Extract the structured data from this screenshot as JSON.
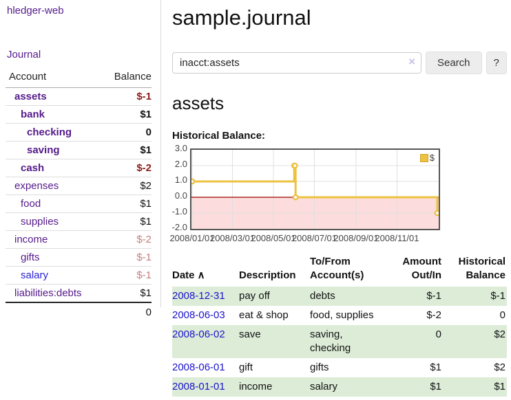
{
  "app": {
    "brand": "hledger-web",
    "nav_journal": "Journal"
  },
  "page": {
    "title": "sample.journal"
  },
  "search": {
    "value": "inacct:assets",
    "clear_icon": "×",
    "button_label": "Search",
    "help_label": "?"
  },
  "account_view": {
    "heading": "assets",
    "chart_label": "Historical Balance:"
  },
  "sidebar_accounts": {
    "header_account": "Account",
    "header_balance": "Balance",
    "rows": [
      {
        "name": "assets",
        "indent": 1,
        "bold": true,
        "balance": "$-1",
        "balance_style": "neg-strong"
      },
      {
        "name": "bank",
        "indent": 2,
        "bold": true,
        "balance": "$1",
        "balance_style": "normal"
      },
      {
        "name": "checking",
        "indent": 3,
        "bold": true,
        "balance": "0",
        "balance_style": "normal"
      },
      {
        "name": "saving",
        "indent": 3,
        "bold": true,
        "balance": "$1",
        "balance_style": "normal"
      },
      {
        "name": "cash",
        "indent": 2,
        "bold": true,
        "balance": "$-2",
        "balance_style": "neg-strong"
      },
      {
        "name": "expenses",
        "indent": 1,
        "bold": false,
        "balance": "$2",
        "balance_style": "normal"
      },
      {
        "name": "food",
        "indent": 2,
        "bold": false,
        "balance": "$1",
        "balance_style": "normal"
      },
      {
        "name": "supplies",
        "indent": 2,
        "bold": false,
        "balance": "$1",
        "balance_style": "normal"
      },
      {
        "name": "income",
        "indent": 1,
        "bold": false,
        "balance": "$-2",
        "balance_style": "neg-muted"
      },
      {
        "name": "gifts",
        "indent": 2,
        "bold": false,
        "balance": "$-1",
        "balance_style": "neg-muted"
      },
      {
        "name": "salary",
        "indent": 2,
        "bold": false,
        "balance": "$-1",
        "balance_style": "neg-muted",
        "link_blue": true
      },
      {
        "name": "liabilities:debts",
        "indent": 1,
        "bold": false,
        "balance": "$1",
        "balance_style": "normal"
      }
    ],
    "total": "0"
  },
  "chart_data": {
    "type": "line",
    "step": true,
    "title": "Historical Balance of assets",
    "legend": "$",
    "legend_position": "top-right",
    "grid": true,
    "ylim": [
      -2.0,
      3.0
    ],
    "yticks": [
      3.0,
      2.0,
      1.0,
      0.0,
      -1.0,
      -2.0
    ],
    "ytick_labels": [
      "3.0",
      "2.0",
      "1.0",
      "0.0",
      "-1.0",
      "-2.0"
    ],
    "xticks": [
      "2008/01/01",
      "2008/03/01",
      "2008/05/01",
      "2008/07/01",
      "2008/09/01",
      "2008/11/01"
    ],
    "x_range": [
      "2008-01-01",
      "2008-12-31"
    ],
    "series": [
      {
        "name": "$",
        "points": [
          [
            "2008-01-01",
            1.0
          ],
          [
            "2008-06-01",
            2.0
          ],
          [
            "2008-06-02",
            2.0
          ],
          [
            "2008-06-03",
            0.0
          ],
          [
            "2008-12-31",
            -1.0
          ]
        ]
      }
    ]
  },
  "register": {
    "sort_icon": "∧",
    "columns": [
      {
        "label": "Date",
        "align": "left",
        "sortable": true
      },
      {
        "label": "Description",
        "align": "left"
      },
      {
        "label": "To/From Account(s)",
        "align": "left"
      },
      {
        "label": "Amount Out/In",
        "align": "right"
      },
      {
        "label": "Historical Balance",
        "align": "right"
      }
    ],
    "rows": [
      {
        "date": "2008-12-31",
        "description": "pay off",
        "accounts": "debts",
        "amount": "$-1",
        "amount_neg": true,
        "balance": "$-1",
        "balance_neg": true
      },
      {
        "date": "2008-06-03",
        "description": "eat & shop",
        "accounts": "food, supplies",
        "amount": "$-2",
        "amount_neg": true,
        "balance": "0",
        "balance_neg": false
      },
      {
        "date": "2008-06-02",
        "description": "save",
        "accounts": "saving, checking",
        "amount": "0",
        "amount_neg": false,
        "balance": "$2",
        "balance_neg": false
      },
      {
        "date": "2008-06-01",
        "description": "gift",
        "accounts": "gifts",
        "amount": "$1",
        "amount_neg": false,
        "balance": "$2",
        "balance_neg": false
      },
      {
        "date": "2008-01-01",
        "description": "income",
        "accounts": "salary",
        "amount": "$1",
        "amount_neg": false,
        "balance": "$1",
        "balance_neg": false
      }
    ]
  },
  "colors": {
    "link_purple": "#551a8b",
    "link_blue": "#1b12cc",
    "negative_strong": "#8b1a1a",
    "negative_muted": "#c47c7c",
    "row_stripe_green": "#dcecd7",
    "chart_line_gold": "#edc240",
    "chart_marker_fill": "#ffffff",
    "chart_negative_region": "#fcdcdc",
    "chart_zero_line": "#990000",
    "chart_grid": "#e0e0e0",
    "chart_border": "#545454"
  }
}
